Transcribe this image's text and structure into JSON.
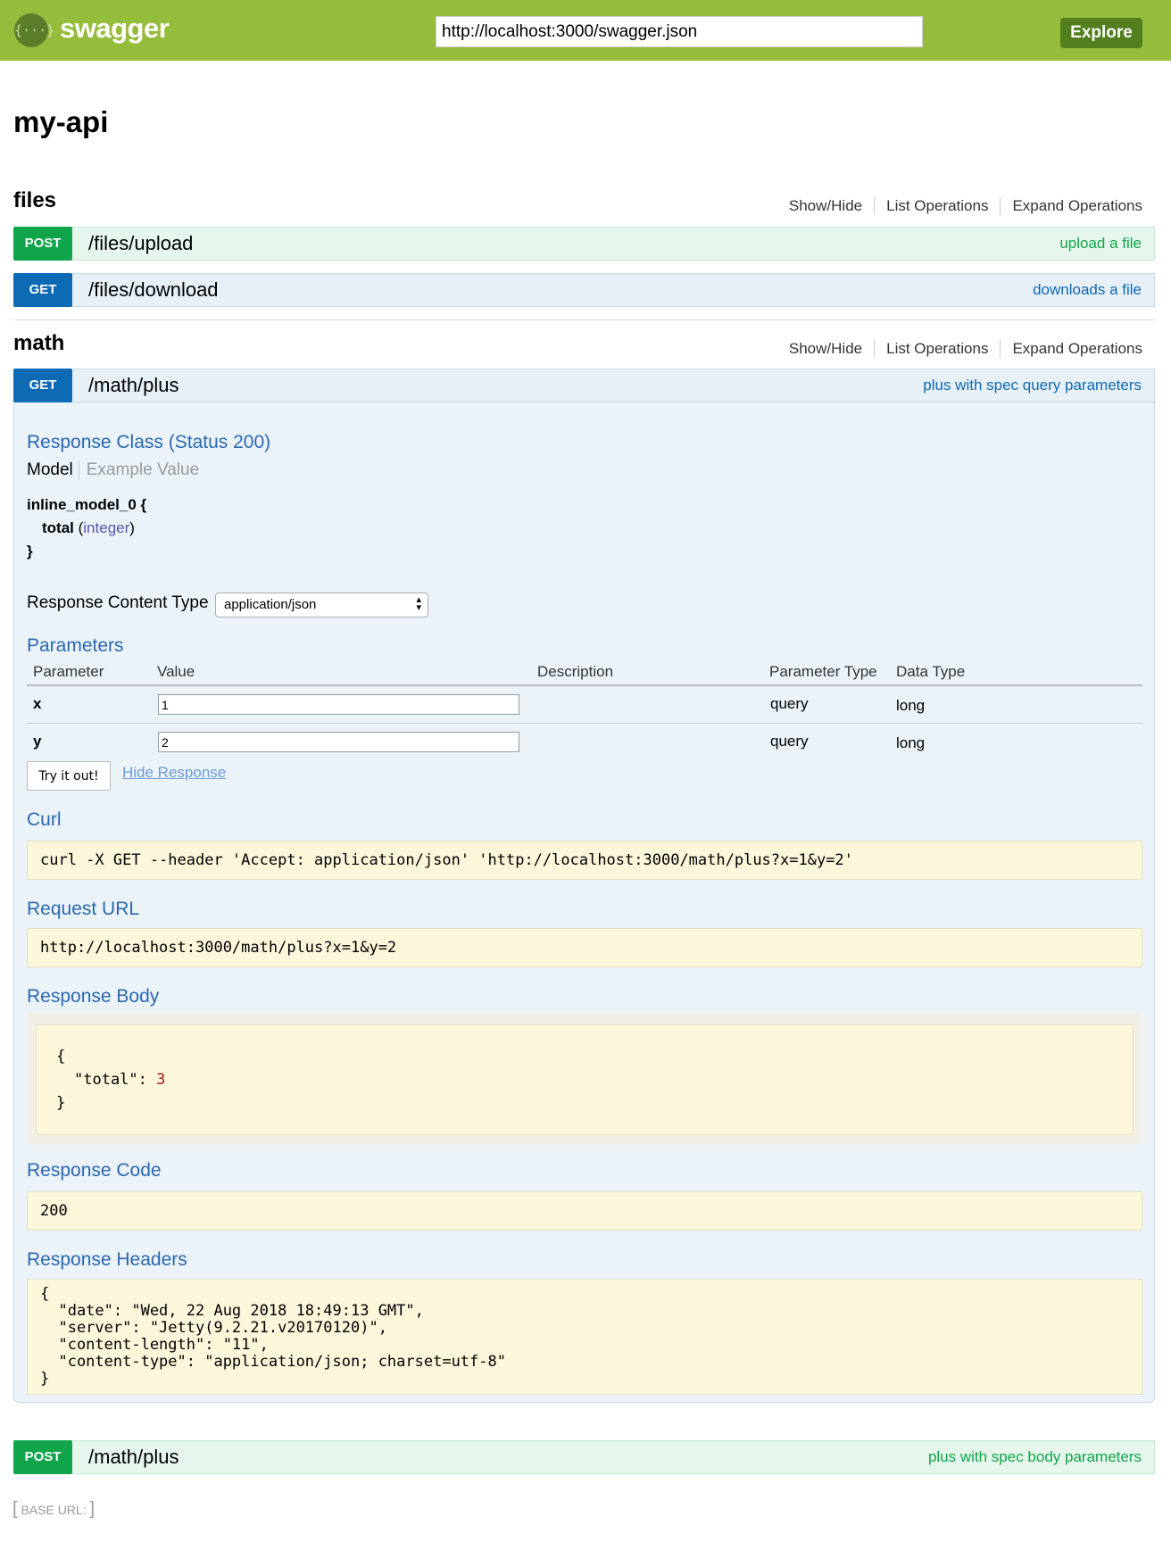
{
  "header": {
    "brand": "swagger",
    "logo_glyph": "{···}",
    "url_value": "http://localhost:3000/swagger.json",
    "explore_label": "Explore"
  },
  "api_title": "my-api",
  "resource_links": {
    "show_hide": "Show/Hide",
    "list": "List Operations",
    "expand": "Expand Operations"
  },
  "resources": [
    {
      "name": "files",
      "operations": [
        {
          "method": "POST",
          "path": "/files/upload",
          "summary": "upload a file"
        },
        {
          "method": "GET",
          "path": "/files/download",
          "summary": "downloads a file"
        }
      ]
    },
    {
      "name": "math",
      "operations": [
        {
          "method": "GET",
          "path": "/math/plus",
          "summary": "plus with spec query parameters"
        },
        {
          "method": "POST",
          "path": "/math/plus",
          "summary": "plus with spec body parameters"
        }
      ]
    }
  ],
  "expanded": {
    "response_class": "Response Class (Status 200)",
    "model_tab": "Model",
    "example_tab": "Example Value",
    "model_name": "inline_model_0 {",
    "model_field": "total",
    "model_type": "integer",
    "model_close": "}",
    "content_type_label": "Response Content Type",
    "content_type_value": "application/json",
    "parameters_title": "Parameters",
    "param_headers": [
      "Parameter",
      "Value",
      "Description",
      "Parameter Type",
      "Data Type"
    ],
    "params": [
      {
        "name": "x",
        "value": "1",
        "type": "query",
        "data_type": "long"
      },
      {
        "name": "y",
        "value": "2",
        "type": "query",
        "data_type": "long"
      }
    ],
    "try_label": "Try it out!",
    "hide_label": "Hide Response",
    "curl_title": "Curl",
    "curl": "curl -X GET --header 'Accept: application/json' 'http://localhost:3000/math/plus?x=1&y=2'",
    "request_url_title": "Request URL",
    "request_url": "http://localhost:3000/math/plus?x=1&y=2",
    "response_body_title": "Response Body",
    "body_open": "{",
    "body_key": "\"total\": ",
    "body_value": "3",
    "body_close": "}",
    "response_code_title": "Response Code",
    "response_code": "200",
    "response_headers_title": "Response Headers",
    "headers_lines": [
      "{",
      "  \"date\": \"Wed, 22 Aug 2018 18:49:13 GMT\",",
      "  \"server\": \"Jetty(9.2.21.v20170120)\",",
      "  \"content-length\": \"11\",",
      "  \"content-type\": \"application/json; charset=utf-8\"",
      "}"
    ]
  },
  "footer": {
    "base_url_label": "BASE URL",
    "base_url_value": ""
  },
  "colors": {
    "header": "#95bc3a",
    "get": "#0f6ab4",
    "post": "#10a54a"
  }
}
